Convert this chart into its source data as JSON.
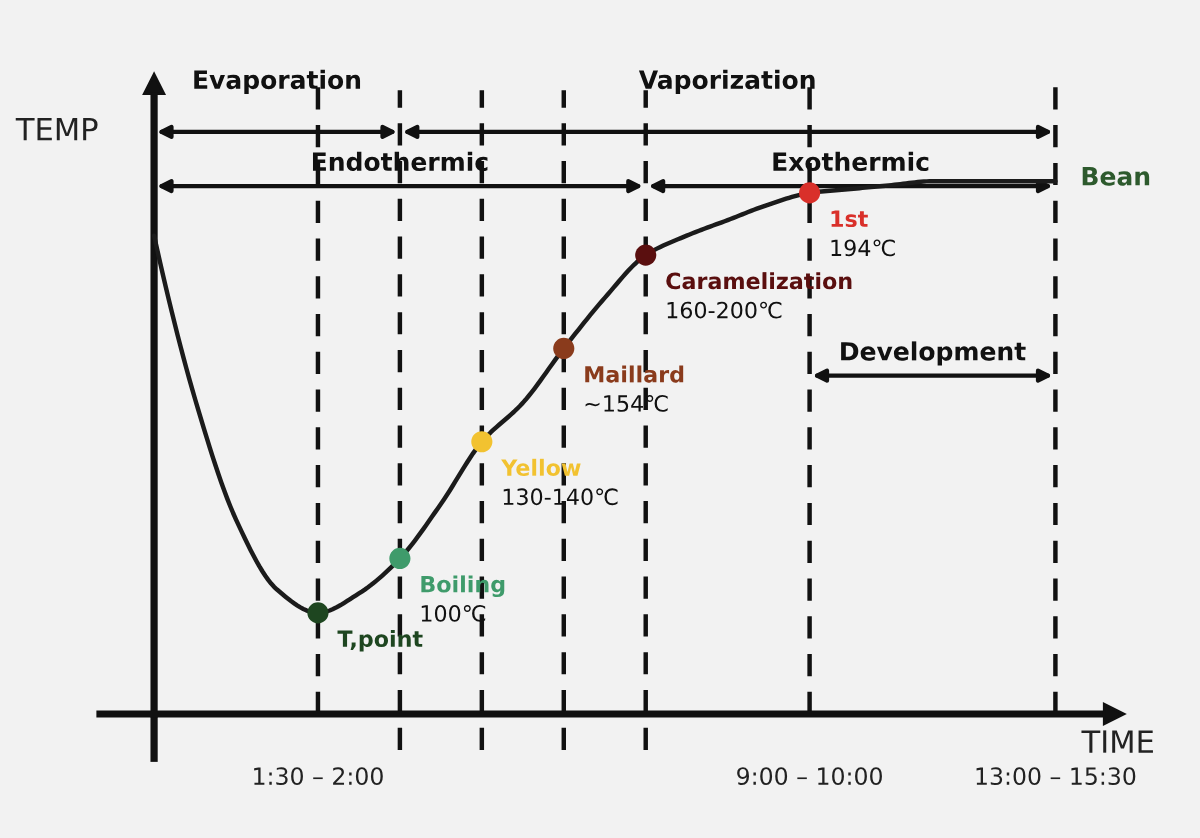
{
  "chart_data": {
    "type": "line",
    "xlabel": "TIME",
    "ylabel": "TEMP",
    "ylim": [
      60,
      222
    ],
    "tick_labels": "x",
    "grid": "x",
    "categories": [
      null,
      null,
      null,
      null,
      "1:30 – 2:00",
      null,
      null,
      null,
      null,
      null,
      null,
      null,
      null,
      null,
      null,
      null,
      "9:00 – 10:00",
      null,
      null,
      null,
      null,
      null,
      "13:00 – 15:30"
    ],
    "series": [
      {
        "name": "Bean",
        "color": "#1b1b1b",
        "values": [
          183,
          141,
          110,
          92,
          86,
          91,
          100,
          114,
          130,
          140,
          154,
          167,
          178,
          183,
          187,
          191,
          194,
          195,
          196,
          197,
          197,
          197,
          197
        ]
      },
      {
        "type": "scatter",
        "name": "T,point",
        "color": "#1e4620",
        "marker": "circle",
        "values": [
          null,
          null,
          null,
          null,
          86,
          null,
          null,
          null,
          null,
          null,
          null,
          null,
          null,
          null,
          null,
          null,
          null,
          null,
          null,
          null,
          null,
          null,
          null
        ]
      },
      {
        "type": "scatter",
        "name": "Boiling",
        "color": "#3f9b6b",
        "marker": "circle",
        "values": [
          null,
          null,
          null,
          null,
          null,
          null,
          100,
          null,
          null,
          null,
          null,
          null,
          null,
          null,
          null,
          null,
          null,
          null,
          null,
          null,
          null,
          null,
          null
        ],
        "value_labels": [
          null,
          null,
          null,
          null,
          null,
          null,
          "100℃",
          null,
          null,
          null,
          null,
          null,
          null,
          null,
          null,
          null,
          null,
          null,
          null,
          null,
          null,
          null,
          null
        ]
      },
      {
        "type": "scatter",
        "name": "Yellow",
        "color": "#f2c230",
        "marker": "circle",
        "values": [
          null,
          null,
          null,
          null,
          null,
          null,
          null,
          null,
          130,
          null,
          null,
          null,
          null,
          null,
          null,
          null,
          null,
          null,
          null,
          null,
          null,
          null,
          null
        ],
        "value_labels": [
          null,
          null,
          null,
          null,
          null,
          null,
          null,
          null,
          "130-140℃",
          null,
          null,
          null,
          null,
          null,
          null,
          null,
          null,
          null,
          null,
          null,
          null,
          null,
          null
        ]
      },
      {
        "type": "scatter",
        "name": "Maillard",
        "color": "#8a3b1c",
        "marker": "circle",
        "values": [
          null,
          null,
          null,
          null,
          null,
          null,
          null,
          null,
          null,
          null,
          154,
          null,
          null,
          null,
          null,
          null,
          null,
          null,
          null,
          null,
          null,
          null,
          null
        ],
        "value_labels": [
          null,
          null,
          null,
          null,
          null,
          null,
          null,
          null,
          null,
          null,
          "~154℃",
          null,
          null,
          null,
          null,
          null,
          null,
          null,
          null,
          null,
          null,
          null,
          null
        ]
      },
      {
        "type": "scatter",
        "name": "Caramelization",
        "color": "#5a0f0f",
        "marker": "circle",
        "values": [
          null,
          null,
          null,
          null,
          null,
          null,
          null,
          null,
          null,
          null,
          null,
          null,
          178,
          null,
          null,
          null,
          null,
          null,
          null,
          null,
          null,
          null,
          null
        ],
        "value_labels": [
          null,
          null,
          null,
          null,
          null,
          null,
          null,
          null,
          null,
          null,
          null,
          null,
          "160-200℃",
          null,
          null,
          null,
          null,
          null,
          null,
          null,
          null,
          null,
          null
        ]
      },
      {
        "type": "scatter",
        "name": "1st",
        "color": "#d9302a",
        "marker": "circle",
        "values": [
          null,
          null,
          null,
          null,
          null,
          null,
          null,
          null,
          null,
          null,
          null,
          null,
          null,
          null,
          null,
          null,
          194,
          null,
          null,
          null,
          null,
          null,
          null
        ],
        "value_labels": [
          null,
          null,
          null,
          null,
          null,
          null,
          null,
          null,
          null,
          null,
          null,
          null,
          null,
          null,
          null,
          null,
          "194℃",
          null,
          null,
          null,
          null,
          null,
          null
        ]
      }
    ],
    "annotations": [
      "Evaporation",
      "Vaporization",
      "Endothermic",
      "Exothermic",
      "Development"
    ]
  }
}
